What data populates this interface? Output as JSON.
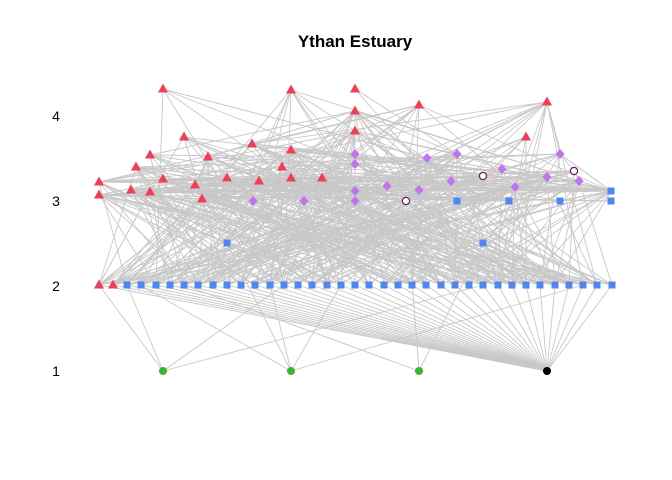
{
  "title": "Ythan Estuary",
  "y_levels": [
    "1",
    "2",
    "3",
    "4"
  ],
  "colors": {
    "edge": "#c8c8c8",
    "triangle": "#f03e58",
    "square": "#4f87f0",
    "diamond": "#c372ee",
    "circle_green": "#33b833",
    "circle_black": "#000000",
    "open_circle_stroke": "#6b1d5c"
  }
}
